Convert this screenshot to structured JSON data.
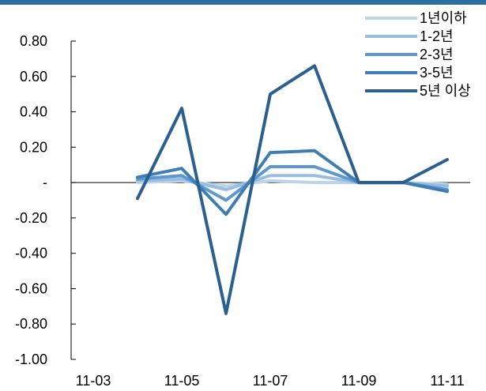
{
  "chart_data": {
    "type": "line",
    "categories": [
      "11-03",
      "11-04",
      "11-05",
      "11-06",
      "11-07",
      "11-08",
      "11-09",
      "11-10",
      "11-11"
    ],
    "x_tick_labels": [
      "11-03",
      "11-05",
      "11-07",
      "11-09",
      "11-11"
    ],
    "y_tick_labels": [
      "0.80",
      "0.60",
      "0.40",
      "0.20",
      "-",
      "-0.20",
      "-0.40",
      "-0.60",
      "-0.80",
      "-1.00"
    ],
    "ylim": [
      -1.0,
      0.8
    ],
    "grid": false,
    "legend_position": "top-right",
    "series": [
      {
        "name": "1년이하",
        "color": "#bcd4ea",
        "values": [
          null,
          0.0,
          0.01,
          -0.02,
          0.01,
          0.0,
          0.0,
          0.0,
          -0.01
        ]
      },
      {
        "name": "1-2년",
        "color": "#99bde0",
        "values": [
          null,
          0.01,
          0.02,
          -0.04,
          0.04,
          0.04,
          0.0,
          0.0,
          -0.02
        ]
      },
      {
        "name": "2-3년",
        "color": "#5e98cf",
        "values": [
          null,
          0.02,
          0.04,
          -0.1,
          0.09,
          0.09,
          0.0,
          0.0,
          -0.04
        ]
      },
      {
        "name": "3-5년",
        "color": "#3f7db3",
        "values": [
          null,
          0.03,
          0.08,
          -0.18,
          0.17,
          0.18,
          0.0,
          0.0,
          -0.05
        ]
      },
      {
        "name": "5년 이상",
        "color": "#2b5f8f",
        "values": [
          null,
          -0.09,
          0.42,
          -0.74,
          0.5,
          0.66,
          0.0,
          0.0,
          0.13
        ]
      }
    ]
  }
}
